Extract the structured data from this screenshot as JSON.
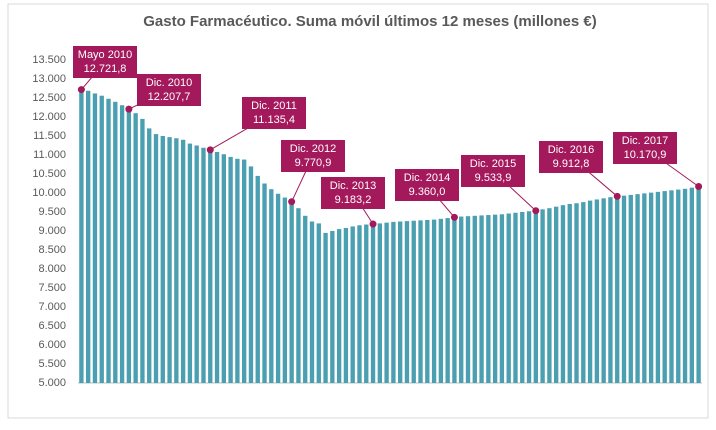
{
  "chart_data": {
    "type": "bar",
    "title": "Gasto Farmacéutico. Suma móvil últimos 12 meses (millones €)",
    "categories": [
      null,
      null,
      null,
      null,
      null,
      null,
      null,
      null,
      null,
      null,
      null,
      null,
      null,
      null,
      null,
      null,
      null,
      null,
      null,
      null,
      null,
      null,
      null,
      null,
      null,
      null,
      null,
      null,
      null,
      null,
      null,
      null,
      null,
      null,
      null,
      null,
      null,
      null,
      null,
      null,
      null,
      null,
      null,
      null,
      null,
      null,
      null,
      null,
      null,
      null,
      null,
      null,
      null,
      null,
      null,
      null,
      null,
      null,
      null,
      null,
      null,
      null,
      null,
      null,
      null,
      null,
      null,
      null,
      null,
      null,
      null,
      null,
      null,
      null,
      null,
      null,
      null,
      null,
      null,
      null,
      null,
      null,
      null,
      null,
      null,
      null,
      null,
      null,
      null,
      null,
      null,
      null
    ],
    "values": [
      12721.8,
      12690,
      12620,
      12560,
      12480,
      12400,
      12310,
      12207.7,
      12100,
      11950,
      11700,
      11550,
      11500,
      11470,
      11440,
      11400,
      11300,
      11250,
      11190,
      11135.4,
      11080,
      11020,
      10950,
      10900,
      10880,
      10700,
      10450,
      10250,
      10100,
      9980,
      9880,
      9770.9,
      9600,
      9400,
      9250,
      9200,
      8950,
      9000,
      9050,
      9080,
      9120,
      9150,
      9170,
      9183.2,
      9200,
      9220,
      9240,
      9250,
      9260,
      9270,
      9280,
      9290,
      9300,
      9320,
      9340,
      9360.0,
      9380,
      9390,
      9400,
      9410,
      9420,
      9430,
      9440,
      9460,
      9480,
      9500,
      9520,
      9533.9,
      9570,
      9600,
      9640,
      9680,
      9710,
      9730,
      9760,
      9800,
      9830,
      9860,
      9890,
      9912.8,
      9930,
      9950,
      9970,
      9990,
      10010,
      10030,
      10050,
      10070,
      10090,
      10110,
      10140,
      10170.9
    ],
    "annotations": [
      "Mayo 2010",
      null,
      null,
      null,
      null,
      null,
      null,
      "Dic. 2010",
      null,
      null,
      null,
      null,
      null,
      null,
      null,
      null,
      null,
      null,
      null,
      "Dic. 2011",
      null,
      null,
      null,
      null,
      null,
      null,
      null,
      null,
      null,
      null,
      null,
      "Dic. 2012",
      null,
      null,
      null,
      null,
      null,
      null,
      null,
      null,
      null,
      null,
      null,
      "Dic. 2013",
      null,
      null,
      null,
      null,
      null,
      null,
      null,
      null,
      null,
      null,
      null,
      "Dic. 2014",
      null,
      null,
      null,
      null,
      null,
      null,
      null,
      null,
      null,
      null,
      null,
      "Dic. 2015",
      null,
      null,
      null,
      null,
      null,
      null,
      null,
      null,
      null,
      null,
      null,
      "Dic. 2016",
      null,
      null,
      null,
      null,
      null,
      null,
      null,
      null,
      null,
      null,
      null,
      "Dic. 2017"
    ],
    "value_labels": [
      "12.721,8",
      null,
      null,
      null,
      null,
      null,
      null,
      "12.207,7",
      null,
      null,
      null,
      null,
      null,
      null,
      null,
      null,
      null,
      null,
      null,
      "11.135,4",
      null,
      null,
      null,
      null,
      null,
      null,
      null,
      null,
      null,
      null,
      null,
      "9.770,9",
      null,
      null,
      null,
      null,
      null,
      null,
      null,
      null,
      null,
      null,
      null,
      "9.183,2",
      null,
      null,
      null,
      null,
      null,
      null,
      null,
      null,
      null,
      null,
      null,
      "9.360,0",
      null,
      null,
      null,
      null,
      null,
      null,
      null,
      null,
      null,
      null,
      null,
      "9.533,9",
      null,
      null,
      null,
      null,
      null,
      null,
      null,
      null,
      null,
      null,
      null,
      "9.912,8",
      null,
      null,
      null,
      null,
      null,
      null,
      null,
      null,
      null,
      null,
      null,
      "10.170,9"
    ],
    "color": "#4a9fb1",
    "annotation_color": "#a3195b",
    "ylim": [
      5000,
      13500
    ],
    "yticks": [
      {
        "value": 5000,
        "label": "5.000"
      },
      {
        "value": 5500,
        "label": "5.500"
      },
      {
        "value": 6000,
        "label": "6.000"
      },
      {
        "value": 6500,
        "label": "6.500"
      },
      {
        "value": 7000,
        "label": "7.000"
      },
      {
        "value": 7500,
        "label": "7.500"
      },
      {
        "value": 8000,
        "label": "8.000"
      },
      {
        "value": 8500,
        "label": "8.500"
      },
      {
        "value": 9000,
        "label": "9.000"
      },
      {
        "value": 9500,
        "label": "9.500"
      },
      {
        "value": 10000,
        "label": "10.000"
      },
      {
        "value": 10500,
        "label": "10.500"
      },
      {
        "value": 11000,
        "label": "11.000"
      },
      {
        "value": 11500,
        "label": "11.500"
      },
      {
        "value": 12000,
        "label": "12.000"
      },
      {
        "value": 12500,
        "label": "12.500"
      },
      {
        "value": 13000,
        "label": "13.000"
      },
      {
        "value": 13500,
        "label": "13.500"
      }
    ],
    "grid": false
  }
}
